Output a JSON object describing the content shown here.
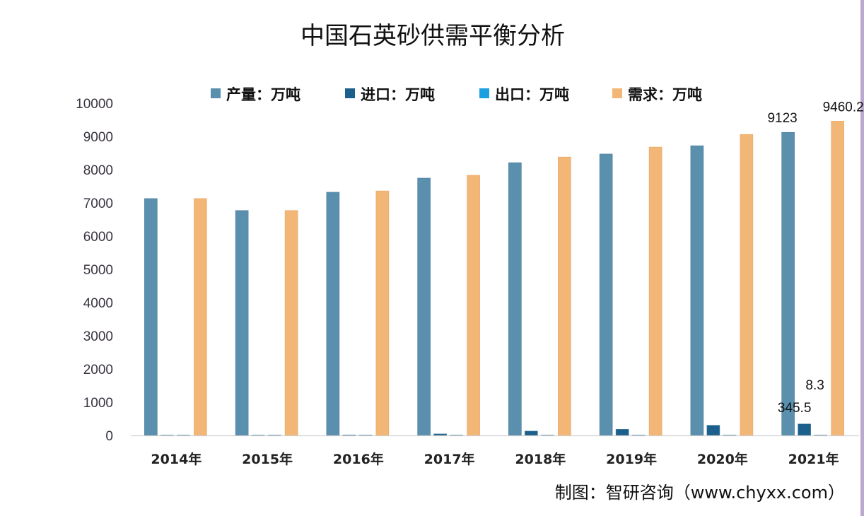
{
  "chart_data": {
    "type": "bar",
    "title": "中国石英砂供需平衡分析",
    "categories": [
      "2014年",
      "2015年",
      "2016年",
      "2017年",
      "2018年",
      "2019年",
      "2020年",
      "2021年"
    ],
    "series": [
      {
        "name": "产量：万吨",
        "color": "#5b8fae",
        "values": [
          7130,
          6770,
          7320,
          7745,
          8210,
          8470,
          8720,
          9123
        ]
      },
      {
        "name": "进口：万吨",
        "color": "#1b5f8c",
        "values": [
          5,
          10,
          15,
          45,
          130,
          185,
          305,
          345.5
        ]
      },
      {
        "name": "出口：万吨",
        "color": "#1aa0e0",
        "values": [
          3,
          3,
          3,
          4,
          5,
          6,
          7,
          8.3
        ]
      },
      {
        "name": "需求：万吨",
        "color": "#f2b677",
        "values": [
          7130,
          6770,
          7360,
          7830,
          8380,
          8680,
          9060,
          9460.2
        ]
      }
    ],
    "data_labels": [
      {
        "series": 0,
        "category": "2021年",
        "text": "9123"
      },
      {
        "series": 3,
        "category": "2021年",
        "text": "9460.2"
      },
      {
        "series": 1,
        "category": "2021年",
        "text": "345.5"
      },
      {
        "series": 2,
        "category": "2021年",
        "text": "8.3"
      }
    ],
    "ylim": [
      0,
      10000
    ],
    "yticks": [
      0,
      1000,
      2000,
      3000,
      4000,
      5000,
      6000,
      7000,
      8000,
      9000,
      10000
    ],
    "legend_position": "top",
    "grid": false
  },
  "source": "制图：智研咨询（www.chyxx.com）"
}
